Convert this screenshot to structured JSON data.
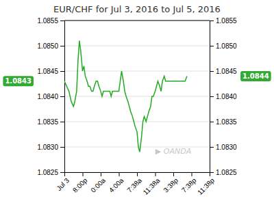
{
  "chart_data": {
    "type": "line",
    "title": "EUR/CHF for Jul 3, 2016 to Jul 5, 2016",
    "color": "#22aa22",
    "x": [
      0,
      0.5,
      1,
      1.5,
      2,
      2.3,
      2.7,
      3.0,
      3.3,
      3.6,
      4.0,
      4.3,
      4.6,
      5.0,
      5.3,
      5.6,
      6.0,
      6.3,
      6.6,
      7.0,
      7.3,
      7.6,
      8.0,
      8.3,
      8.6,
      9.0,
      9.3,
      9.6,
      10.0,
      10.3,
      10.6,
      11.0,
      11.3,
      11.6,
      12.0,
      12.3,
      12.6,
      13.0,
      13.3,
      13.6,
      14.0,
      14.3,
      14.6,
      15.0,
      15.3,
      15.6,
      16.0,
      16.3,
      16.6,
      17.0,
      17.3,
      17.6,
      18.0,
      18.3,
      18.6,
      19.0,
      19.3,
      19.6,
      20.0,
      20.3,
      20.6,
      21.0,
      21.3,
      21.6,
      22.0,
      22.3,
      22.6,
      23.0,
      23.3,
      23.6,
      24.0,
      24.3,
      24.6,
      25.0,
      25.3,
      25.6,
      26.0,
      26.3,
      26.6,
      27.0
    ],
    "values": [
      1.0843,
      1.0842,
      1.0841,
      1.0839,
      1.0838,
      1.0839,
      1.0841,
      1.0847,
      1.0851,
      1.0849,
      1.0845,
      1.0846,
      1.0844,
      1.0843,
      1.0842,
      1.0842,
      1.0841,
      1.0841,
      1.0842,
      1.0843,
      1.0843,
      1.0842,
      1.0841,
      1.084,
      1.0841,
      1.0841,
      1.0841,
      1.0841,
      1.0841,
      1.084,
      1.0841,
      1.0841,
      1.0841,
      1.0841,
      1.0841,
      1.0843,
      1.0845,
      1.0843,
      1.0841,
      1.084,
      1.0839,
      1.0838,
      1.0837,
      1.0836,
      1.0835,
      1.0834,
      1.0833,
      1.083,
      1.0829,
      1.0832,
      1.0835,
      1.0836,
      1.0835,
      1.0836,
      1.0837,
      1.0838,
      1.084,
      1.084,
      1.0841,
      1.0842,
      1.0843,
      1.0842,
      1.0841,
      1.0843,
      1.0844,
      1.0843,
      1.0843,
      1.0843,
      1.0843,
      1.0843,
      1.0843,
      1.0843,
      1.0843,
      1.0843,
      1.0843,
      1.0843,
      1.0843,
      1.0843,
      1.0843,
      1.0844
    ],
    "xlim": [
      0,
      32
    ],
    "xticks": [
      {
        "value": 0,
        "label": "Jul 3"
      },
      {
        "value": 4,
        "label": "8:00p"
      },
      {
        "value": 8,
        "label": "0:00a"
      },
      {
        "value": 12,
        "label": "4:00a"
      },
      {
        "value": 16,
        "label": "7:38a"
      },
      {
        "value": 20,
        "label": "11:38a"
      },
      {
        "value": 24,
        "label": "3:38p"
      },
      {
        "value": 28,
        "label": "7:38p"
      },
      {
        "value": 32,
        "label": "11:38p"
      }
    ],
    "ylim": [
      1.0825,
      1.0855
    ],
    "yticks": [
      1.0825,
      {
        "value": 1.083,
        "label": "1.0830"
      },
      1.0835,
      {
        "value": 1.084,
        "label": "1.0840"
      },
      1.0845,
      {
        "value": 1.085,
        "label": "1.0850"
      },
      1.0855
    ],
    "y2lim": [
      1.0825,
      1.0855
    ],
    "y2ticks": [
      1.0825,
      {
        "value": 1.083,
        "label": "1.0830"
      },
      1.0835,
      {
        "value": 1.084,
        "label": "1.0840"
      },
      1.0845,
      {
        "value": 1.085,
        "label": "1.0850"
      },
      1.0855
    ],
    "grid": true,
    "annotations": [
      {
        "text": "1.0843",
        "y": 1.0843,
        "color": "#33aa33"
      },
      {
        "text": "1.0844",
        "y": 1.0844,
        "axis": "y2",
        "color": "#33aa33"
      },
      {
        "text": "▶ OANDA"
      }
    ]
  }
}
